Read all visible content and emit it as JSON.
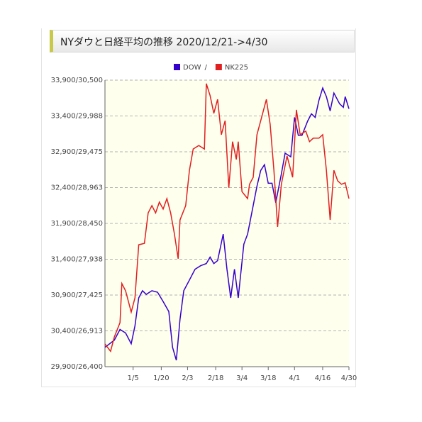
{
  "chart_data": {
    "type": "line",
    "title": "NYダウと日経平均の推移 2020/12/21->4/30",
    "legend_separator": "/",
    "xlim": [
      0,
      130
    ],
    "xticks": [
      {
        "value": 15,
        "label": "1/5"
      },
      {
        "value": 30,
        "label": "1/20"
      },
      {
        "value": 44,
        "label": "2/3"
      },
      {
        "value": 59,
        "label": "2/18"
      },
      {
        "value": 73,
        "label": "3/4"
      },
      {
        "value": 87,
        "label": "3/18"
      },
      {
        "value": 101,
        "label": "4/1"
      },
      {
        "value": 116,
        "label": "4/16"
      },
      {
        "value": 130,
        "label": "4/30"
      }
    ],
    "ylim": [
      29900,
      33900
    ],
    "yticks": [
      {
        "value": 29900,
        "label": "29,900/26,400"
      },
      {
        "value": 30400,
        "label": "30,400/26,913"
      },
      {
        "value": 30900,
        "label": "30,900/27,425"
      },
      {
        "value": 31400,
        "label": "31,400/27,938"
      },
      {
        "value": 31900,
        "label": "31,900/28,450"
      },
      {
        "value": 32400,
        "label": "32,400/28,963"
      },
      {
        "value": 32900,
        "label": "32,900/29,475"
      },
      {
        "value": 33400,
        "label": "33,400/29,988"
      },
      {
        "value": 33900,
        "label": "33,900/30,500"
      }
    ],
    "y2lim": [
      26400,
      30500
    ],
    "grid": true,
    "series": [
      {
        "name": "DOW",
        "color": "#3300cc",
        "x": [
          0,
          5,
          8,
          11,
          14,
          16,
          18,
          20,
          22,
          25,
          28,
          31,
          34,
          36,
          38,
          40,
          42,
          45,
          48,
          51,
          54,
          56,
          58,
          60,
          63,
          65,
          67,
          69,
          71,
          74,
          76,
          79,
          81,
          83,
          85,
          87,
          89,
          91,
          94,
          96,
          99,
          101,
          103,
          105,
          108,
          110,
          112,
          114,
          116,
          118,
          120,
          122,
          125,
          127,
          128,
          130
        ],
        "values": [
          30170,
          30270,
          30420,
          30370,
          30220,
          30470,
          30860,
          30960,
          30910,
          30960,
          30940,
          30810,
          30670,
          30170,
          29990,
          30560,
          30960,
          31110,
          31260,
          31310,
          31340,
          31430,
          31340,
          31380,
          31750,
          31260,
          30860,
          31260,
          30860,
          31610,
          31750,
          32150,
          32420,
          32640,
          32720,
          32460,
          32460,
          32190,
          32590,
          32880,
          32830,
          33380,
          33130,
          33130,
          33330,
          33430,
          33380,
          33620,
          33790,
          33670,
          33470,
          33720,
          33570,
          33520,
          33670,
          33500
        ]
      },
      {
        "name": "NK225",
        "color": "#e02020",
        "axis": "y2",
        "x": [
          0,
          3,
          5,
          8,
          9,
          11,
          14,
          16,
          18,
          21,
          23,
          25,
          27,
          29,
          31,
          33,
          35,
          37,
          39,
          40,
          43,
          45,
          47,
          50,
          53,
          54,
          56,
          58,
          60,
          62,
          64,
          66,
          68,
          70,
          71,
          73,
          76,
          77,
          79,
          81,
          83,
          86,
          88,
          90,
          92,
          94,
          97,
          100,
          102,
          104,
          107,
          109,
          111,
          114,
          116,
          118,
          120,
          122,
          124,
          126,
          128,
          130
        ],
        "values": [
          26725,
          26620,
          26825,
          27030,
          27590,
          27485,
          27180,
          27385,
          28145,
          28165,
          28600,
          28705,
          28600,
          28755,
          28655,
          28805,
          28600,
          28300,
          27945,
          28500,
          28705,
          29210,
          29515,
          29565,
          29515,
          30450,
          30280,
          30025,
          30225,
          29720,
          29920,
          28960,
          29620,
          29365,
          29620,
          28905,
          28805,
          29010,
          29110,
          29720,
          29920,
          30225,
          29870,
          29210,
          28400,
          29010,
          29415,
          29110,
          30075,
          29720,
          29770,
          29620,
          29670,
          29670,
          29720,
          29210,
          28500,
          29210,
          29060,
          29010,
          29030,
          28805
        ]
      }
    ]
  }
}
